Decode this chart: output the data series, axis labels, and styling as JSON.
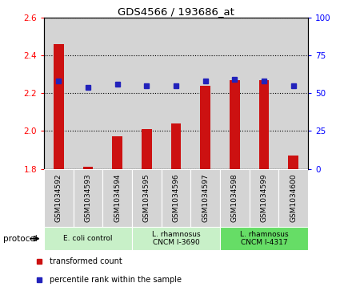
{
  "title": "GDS4566 / 193686_at",
  "samples": [
    "GSM1034592",
    "GSM1034593",
    "GSM1034594",
    "GSM1034595",
    "GSM1034596",
    "GSM1034597",
    "GSM1034598",
    "GSM1034599",
    "GSM1034600"
  ],
  "transformed_count": [
    2.46,
    1.81,
    1.97,
    2.01,
    2.04,
    2.24,
    2.27,
    2.27,
    1.87
  ],
  "percentile_rank": [
    58,
    54,
    56,
    55,
    55,
    58,
    59,
    58,
    55
  ],
  "ylim_left": [
    1.8,
    2.6
  ],
  "ylim_right": [
    0,
    100
  ],
  "yticks_left": [
    1.8,
    2.0,
    2.2,
    2.4,
    2.6
  ],
  "yticks_right": [
    0,
    25,
    50,
    75,
    100
  ],
  "bar_color": "#cc1111",
  "dot_color": "#2222bb",
  "col_bg_color": "#d4d4d4",
  "protocol_groups": [
    {
      "label": "E. coli control",
      "start": 0,
      "end": 3,
      "color": "#c8f0c8"
    },
    {
      "label": "L. rhamnosus\nCNCM I-3690",
      "start": 3,
      "end": 6,
      "color": "#c8f0c8"
    },
    {
      "label": "L. rhamnosus\nCNCM I-4317",
      "start": 6,
      "end": 9,
      "color": "#66dd66"
    }
  ],
  "legend_items": [
    {
      "label": "transformed count",
      "color": "#cc1111"
    },
    {
      "label": "percentile rank within the sample",
      "color": "#2222bb"
    }
  ],
  "bar_width": 0.35
}
